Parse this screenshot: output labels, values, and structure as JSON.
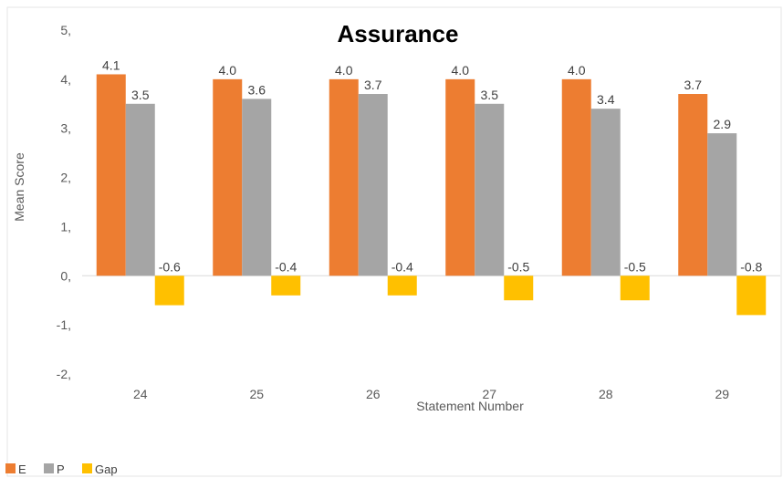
{
  "chart_data": {
    "type": "bar",
    "title": "Assurance",
    "xlabel": "Statement Number",
    "ylabel": "Mean Score",
    "categories": [
      "24",
      "25",
      "26",
      "27",
      "28",
      "29"
    ],
    "series": [
      {
        "name": "E",
        "color": "#ED7D31",
        "values": [
          4.1,
          4.0,
          4.0,
          4.0,
          4.0,
          3.7
        ],
        "labels": [
          "4.1",
          "4.0",
          "4.0",
          "4.0",
          "4.0",
          "3.7"
        ]
      },
      {
        "name": "P",
        "color": "#A5A5A5",
        "values": [
          3.5,
          3.6,
          3.7,
          3.5,
          3.4,
          2.9
        ],
        "labels": [
          "3.5",
          "3.6",
          "3.7",
          "3.5",
          "3.4",
          "2.9"
        ]
      },
      {
        "name": "Gap",
        "color": "#FFC000",
        "values": [
          -0.6,
          -0.4,
          -0.4,
          -0.5,
          -0.5,
          -0.8
        ],
        "labels": [
          "-0.6",
          "-0.4",
          "-0.4",
          "-0.5",
          "-0.5",
          "-0.8"
        ]
      }
    ],
    "ylim": [
      -2,
      5
    ],
    "yticks": [
      5,
      4,
      3,
      2,
      1,
      0,
      -1,
      -2
    ],
    "ytick_labels": [
      "5,",
      "4,",
      "3,",
      "2,",
      "1,",
      "0,",
      "-1,",
      "-2,"
    ],
    "grid": false,
    "legend_position": "bottom-left"
  }
}
